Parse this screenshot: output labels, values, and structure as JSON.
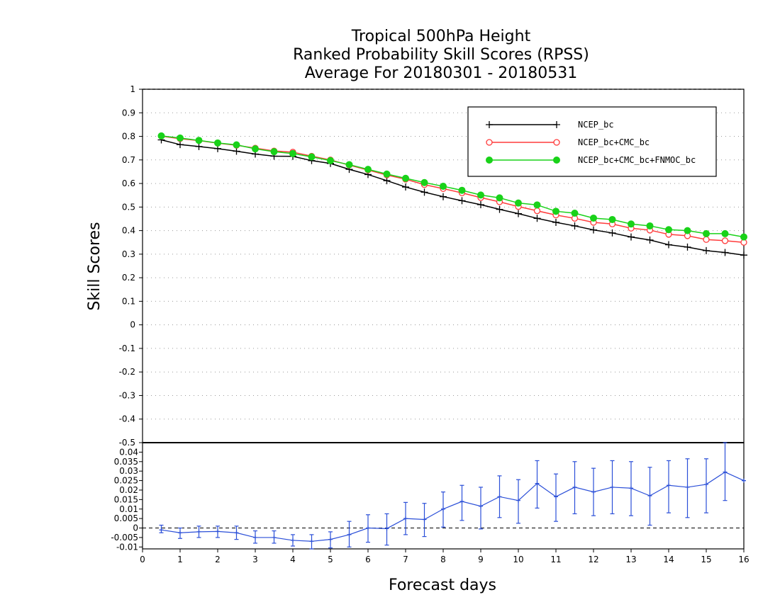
{
  "chart_data": {
    "type": "line",
    "title": [
      "Tropical 500hPa Height",
      "Ranked Probability Skill Scores (RPSS)",
      "Average For 20180301 - 20180531"
    ],
    "xlabel": "Forecast days",
    "ylabel": "Skill Scores",
    "xlim": [
      0,
      16
    ],
    "x_ticks": [
      0,
      1,
      2,
      3,
      4,
      5,
      6,
      7,
      8,
      9,
      10,
      11,
      12,
      13,
      14,
      15,
      16
    ],
    "grid": true,
    "legend_position": "top-right",
    "main_panel": {
      "ylim": [
        -0.5,
        1
      ],
      "y_ticks": [
        1,
        0.9,
        0.8,
        0.7,
        0.6,
        0.5,
        0.4,
        0.3,
        0.2,
        0.1,
        0,
        -0.1,
        -0.2,
        -0.3,
        -0.4,
        -0.5
      ],
      "y_tick_labels": [
        "1",
        "0.9",
        "0.8",
        "0.7",
        "0.6",
        "0.5",
        "0.4",
        "0.3",
        "0.2",
        "0.1",
        "0",
        "-0.1",
        "-0.2",
        "-0.3",
        "-0.4",
        "-0.5"
      ],
      "x": [
        0.5,
        1,
        1.5,
        2,
        2.5,
        3,
        3.5,
        4,
        4.5,
        5,
        5.5,
        6,
        6.5,
        7,
        7.5,
        8,
        8.5,
        9,
        9.5,
        10,
        10.5,
        11,
        11.5,
        12,
        12.5,
        13,
        13.5,
        14,
        14.5,
        15,
        15.5,
        16
      ],
      "series": [
        {
          "name": "NCEP_bc",
          "color": "#000000",
          "marker": "plus",
          "values": [
            0.785,
            0.765,
            0.757,
            0.748,
            0.737,
            0.725,
            0.716,
            0.715,
            0.697,
            0.685,
            0.66,
            0.638,
            0.612,
            0.585,
            0.563,
            0.544,
            0.527,
            0.51,
            0.49,
            0.472,
            0.452,
            0.435,
            0.42,
            0.403,
            0.39,
            0.373,
            0.36,
            0.34,
            0.33,
            0.315,
            0.307,
            0.296
          ]
        },
        {
          "name": "NCEP_bc+CMC_bc",
          "color": "#ff3b3b",
          "marker": "open-circle",
          "values": [
            0.801,
            0.79,
            0.782,
            0.771,
            0.762,
            0.75,
            0.738,
            0.733,
            0.716,
            0.7,
            0.678,
            0.657,
            0.636,
            0.618,
            0.595,
            0.578,
            0.56,
            0.54,
            0.522,
            0.502,
            0.484,
            0.466,
            0.452,
            0.435,
            0.428,
            0.41,
            0.402,
            0.384,
            0.378,
            0.362,
            0.357,
            0.35
          ]
        },
        {
          "name": "NCEP_bc+CMC_bc+FNMOC_bc",
          "color": "#19d219",
          "marker": "filled-circle",
          "values": [
            0.802,
            0.793,
            0.783,
            0.772,
            0.764,
            0.747,
            0.735,
            0.727,
            0.713,
            0.697,
            0.68,
            0.66,
            0.64,
            0.622,
            0.604,
            0.588,
            0.571,
            0.551,
            0.539,
            0.517,
            0.509,
            0.482,
            0.474,
            0.453,
            0.447,
            0.428,
            0.42,
            0.404,
            0.4,
            0.387,
            0.387,
            0.373
          ]
        }
      ]
    },
    "difference_panel": {
      "ylim": [
        -0.011,
        0.045
      ],
      "y_ticks": [
        0.04,
        0.035,
        0.03,
        0.025,
        0.02,
        0.015,
        0.01,
        0.005,
        0,
        -0.005,
        -0.01
      ],
      "y_tick_labels": [
        "0.04",
        "0.035",
        "0.03",
        "0.025",
        "0.02",
        "0.015",
        "0.01",
        "0.005",
        "0",
        "-0.005",
        "-0.01"
      ],
      "color": "#2b4fd8",
      "reference_line": 0,
      "x": [
        0.5,
        1,
        1.5,
        2,
        2.5,
        3,
        3.5,
        4,
        4.5,
        5,
        5.5,
        6,
        6.5,
        7,
        7.5,
        8,
        8.5,
        9,
        9.5,
        10,
        10.5,
        11,
        11.5,
        12,
        12.5,
        13,
        13.5,
        14,
        14.5,
        15,
        15.5,
        16
      ],
      "values": [
        -0.001,
        -0.0025,
        -0.002,
        -0.0018,
        -0.0025,
        -0.005,
        -0.005,
        -0.0065,
        -0.007,
        -0.006,
        -0.0035,
        0,
        -0.0003,
        0.005,
        0.0045,
        0.01,
        0.014,
        0.0115,
        0.0165,
        0.0145,
        0.0235,
        0.0165,
        0.0215,
        0.019,
        0.0215,
        0.021,
        0.017,
        0.0225,
        0.0215,
        0.023,
        0.0295,
        0.025
      ],
      "error_low": [
        -0.0025,
        -0.0055,
        -0.005,
        -0.005,
        -0.006,
        -0.008,
        -0.008,
        -0.0095,
        -0.011,
        -0.0105,
        -0.01,
        -0.0075,
        -0.009,
        -0.0035,
        -0.0045,
        0.0005,
        0.004,
        -0.0005,
        0.0055,
        0.0025,
        0.0105,
        0.0035,
        0.0075,
        0.0065,
        0.0075,
        0.0065,
        0.0015,
        0.008,
        0.0055,
        0.008,
        0.0145,
        0.025
      ],
      "error_high": [
        0.0015,
        0,
        0.001,
        0.001,
        0.001,
        -0.0015,
        -0.0015,
        -0.0035,
        -0.0035,
        -0.002,
        0.0035,
        0.007,
        0.0075,
        0.0135,
        0.013,
        0.019,
        0.0225,
        0.0215,
        0.0275,
        0.0255,
        0.0355,
        0.0285,
        0.035,
        0.0315,
        0.0355,
        0.035,
        0.032,
        0.0355,
        0.0365,
        0.0365,
        0.045,
        0.025
      ]
    }
  }
}
